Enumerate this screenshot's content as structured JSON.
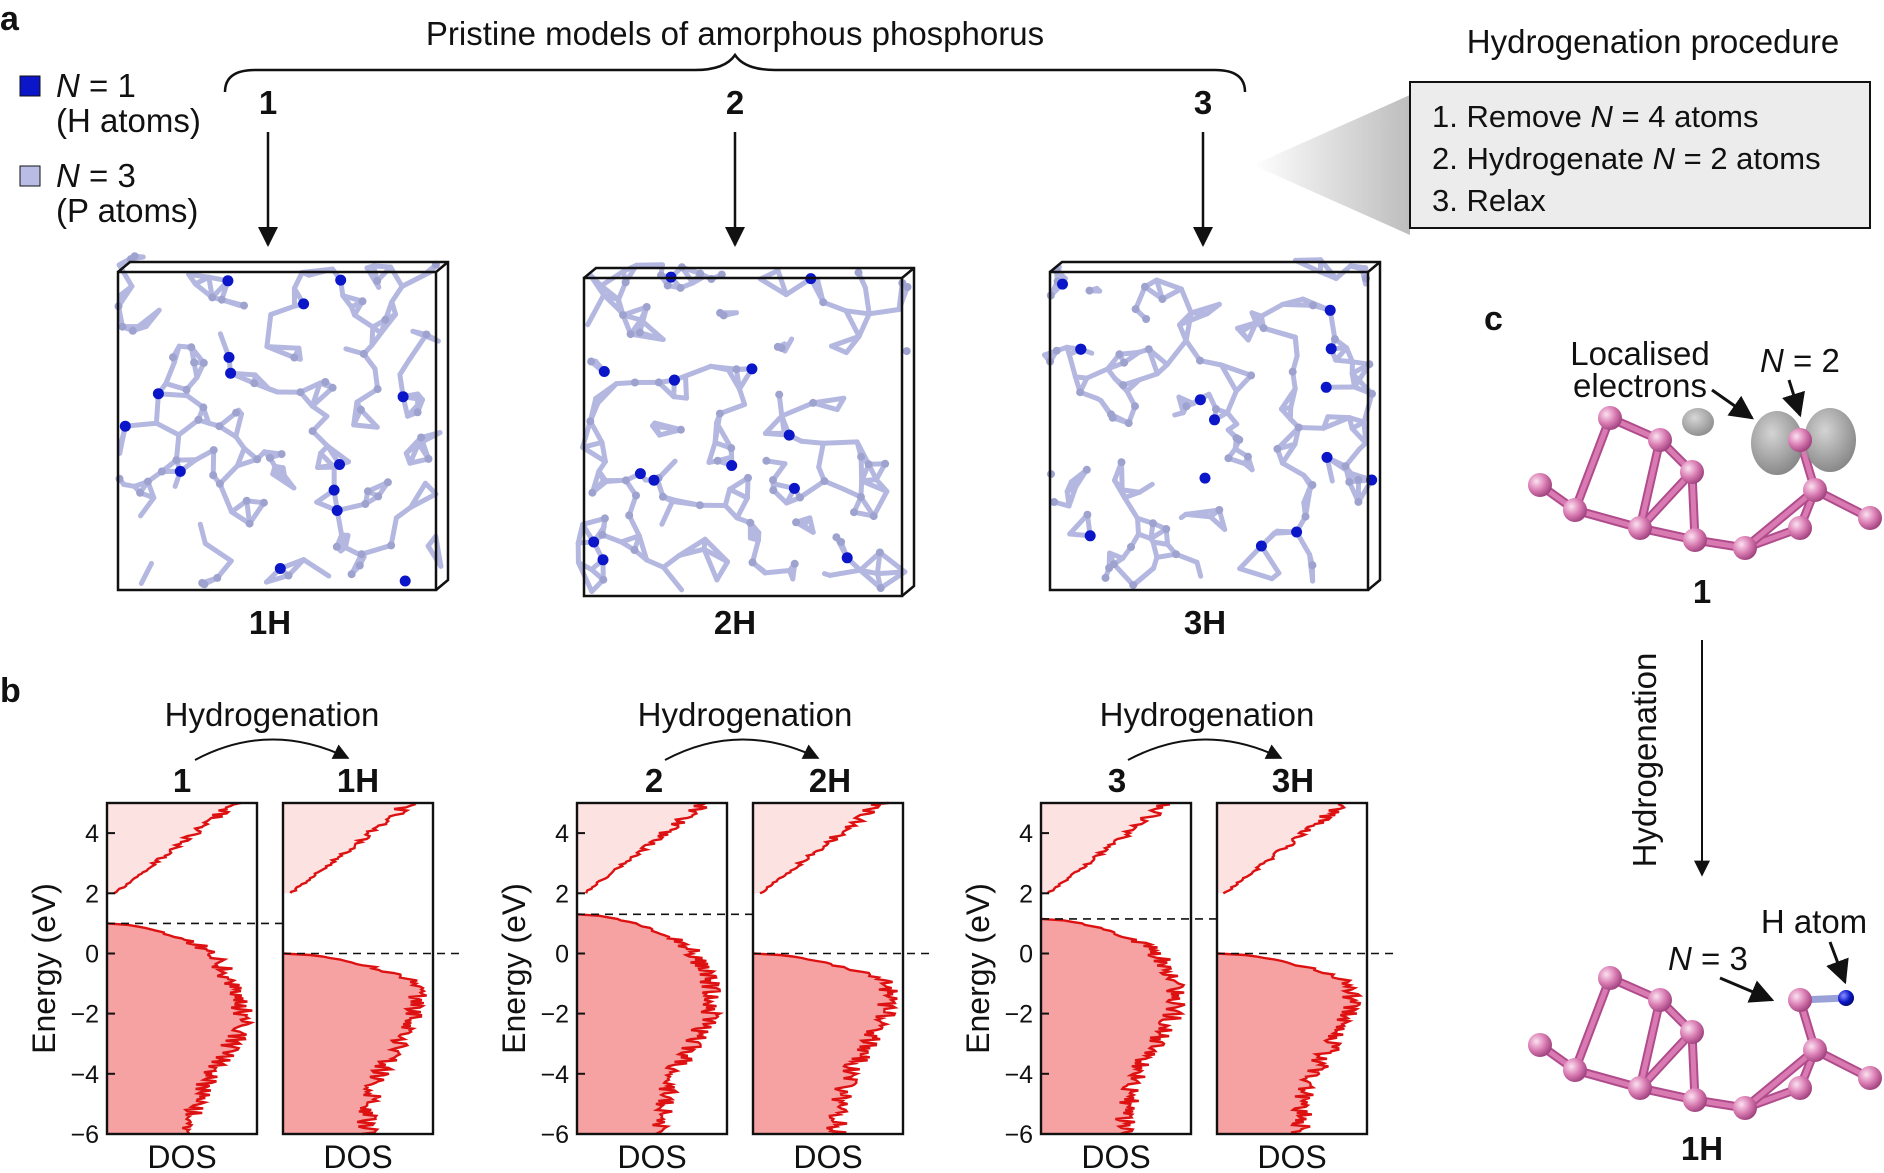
{
  "colors": {
    "h_atom": "#0a16c8",
    "p_atom": "#b9bde6",
    "p_bond": "#b4b8e0",
    "dos_line": "#dd1111",
    "dos_fill_filled": "#f6a2a2",
    "dos_fill_empty": "#fde2e2",
    "molecule": "#d97bb2",
    "molecule_dark": "#b04c8c",
    "orbital": "#8a8a8a",
    "procedure_box_bg": "#ececec"
  },
  "panel_a": {
    "letter": "a",
    "legend": [
      {
        "n_symbol": "N",
        "n_text": " = 1",
        "sub": "(H atoms)",
        "swatch": "#0a16c8"
      },
      {
        "n_symbol": "N",
        "n_text": " = 3",
        "sub": "(P atoms)",
        "swatch": "#b9bde6"
      }
    ],
    "brace_title": "Pristine models of amorphous phosphorus",
    "models": [
      {
        "number": "1",
        "label": "1H"
      },
      {
        "number": "2",
        "label": "2H"
      },
      {
        "number": "3",
        "label": "3H"
      }
    ],
    "procedure": {
      "title": "Hydrogenation procedure",
      "steps": [
        {
          "pre": "1. Remove ",
          "n": "N",
          "post": " = 4 atoms"
        },
        {
          "pre": "2. Hydrogenate ",
          "n": "N",
          "post": " = 2 atoms"
        },
        {
          "pre": "3. Relax",
          "n": "",
          "post": ""
        }
      ]
    }
  },
  "panel_b": {
    "letter": "b",
    "groups": [
      {
        "arrow_label": "Hydrogenation",
        "from": "1",
        "to": "1H"
      },
      {
        "arrow_label": "Hydrogenation",
        "from": "2",
        "to": "2H"
      },
      {
        "arrow_label": "Hydrogenation",
        "from": "3",
        "to": "3H"
      }
    ]
  },
  "panel_c": {
    "letter": "c",
    "top_label": "1",
    "bottom_label": "1H",
    "arrow_label": "Hydrogenation",
    "annotations": {
      "localised": [
        "Localised",
        "electrons"
      ],
      "n2": {
        "n": "N",
        "text": " = 2"
      },
      "n3": {
        "n": "N",
        "text": " = 3"
      },
      "h_atom": "H atom"
    }
  },
  "chart_data": [
    {
      "type": "area",
      "name": "1",
      "ylabel": "Energy (eV)",
      "xlabel": "DOS",
      "ylim": [
        -6,
        5
      ],
      "yticks": [
        -6,
        -4,
        -2,
        0,
        2,
        4
      ],
      "fermi": 1.0,
      "gap": [
        1.0,
        2.0
      ],
      "peak": -2.0
    },
    {
      "type": "area",
      "name": "1H",
      "ylabel": "",
      "xlabel": "DOS",
      "ylim": [
        -6,
        5
      ],
      "yticks": [
        -6,
        -4,
        -2,
        0,
        2,
        4
      ],
      "fermi": 0.0,
      "gap": [
        0.0,
        2.0
      ],
      "peak": -1.5
    },
    {
      "type": "area",
      "name": "2",
      "ylabel": "Energy (eV)",
      "xlabel": "DOS",
      "ylim": [
        -6,
        5
      ],
      "yticks": [
        -6,
        -4,
        -2,
        0,
        2,
        4
      ],
      "fermi": 1.3,
      "gap": [
        1.3,
        2.0
      ],
      "peak": -1.5
    },
    {
      "type": "area",
      "name": "2H",
      "ylabel": "",
      "xlabel": "DOS",
      "ylim": [
        -6,
        5
      ],
      "yticks": [
        -6,
        -4,
        -2,
        0,
        2,
        4
      ],
      "fermi": 0.0,
      "gap": [
        0.0,
        2.0
      ],
      "peak": -1.5
    },
    {
      "type": "area",
      "name": "3",
      "ylabel": "Energy (eV)",
      "xlabel": "DOS",
      "ylim": [
        -6,
        5
      ],
      "yticks": [
        -6,
        -4,
        -2,
        0,
        2,
        4
      ],
      "fermi": 1.15,
      "gap": [
        1.15,
        2.0
      ],
      "peak": -1.5
    },
    {
      "type": "area",
      "name": "3H",
      "ylabel": "",
      "xlabel": "DOS",
      "ylim": [
        -6,
        5
      ],
      "yticks": [
        -6,
        -4,
        -2,
        0,
        2,
        4
      ],
      "fermi": 0.0,
      "gap": [
        0.0,
        2.0
      ],
      "peak": -1.5
    }
  ]
}
